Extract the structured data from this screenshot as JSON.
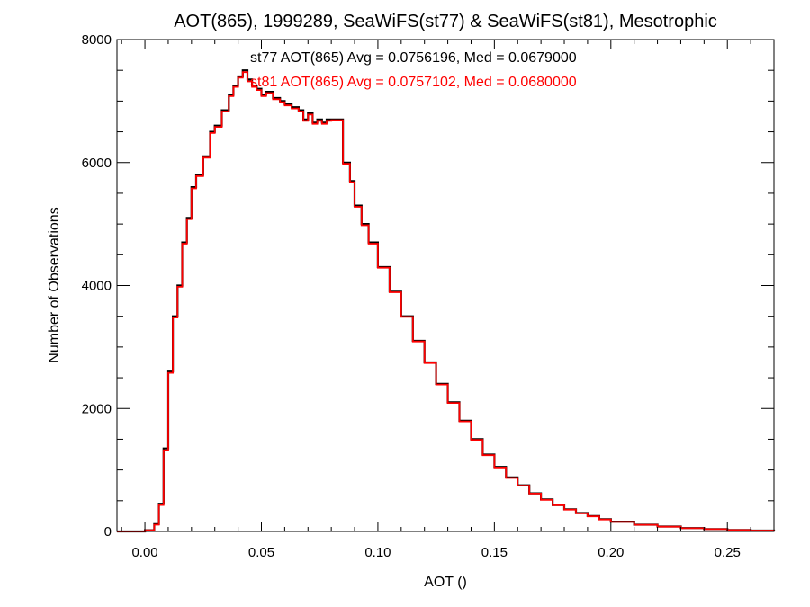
{
  "chart_data": {
    "type": "line",
    "step": true,
    "title": "AOT(865), 1999289, SeaWiFS(st77) & SeaWiFS(st81), Mesotrophic",
    "xlabel": "AOT ()",
    "ylabel": "Number of Observations",
    "xlim": [
      -0.012,
      0.27
    ],
    "ylim": [
      0,
      8000
    ],
    "xticks": [
      0.0,
      0.05,
      0.1,
      0.15,
      0.2,
      0.25
    ],
    "xtick_labels": [
      "0.00",
      "0.05",
      "0.10",
      "0.15",
      "0.20",
      "0.25"
    ],
    "yticks": [
      0,
      2000,
      4000,
      6000,
      8000
    ],
    "ytick_labels": [
      "0",
      "2000",
      "4000",
      "6000",
      "8000"
    ],
    "grid": false,
    "annotations": [
      {
        "text": "st77 AOT(865) Avg = 0.0756196, Med = 0.0679000",
        "color": "#000000"
      },
      {
        "text": "st81 AOT(865) Avg = 0.0757102, Med = 0.0680000",
        "color": "#ff0000"
      }
    ],
    "series": [
      {
        "color": "#000000",
        "x": [
          -0.012,
          -0.005,
          0.0,
          0.004,
          0.006,
          0.008,
          0.01,
          0.012,
          0.014,
          0.016,
          0.018,
          0.02,
          0.022,
          0.025,
          0.028,
          0.03,
          0.033,
          0.036,
          0.038,
          0.04,
          0.042,
          0.044,
          0.046,
          0.048,
          0.05,
          0.052,
          0.055,
          0.058,
          0.06,
          0.063,
          0.066,
          0.068,
          0.07,
          0.072,
          0.074,
          0.076,
          0.078,
          0.08,
          0.082,
          0.085,
          0.088,
          0.09,
          0.093,
          0.096,
          0.1,
          0.105,
          0.11,
          0.115,
          0.12,
          0.125,
          0.13,
          0.135,
          0.14,
          0.145,
          0.15,
          0.155,
          0.16,
          0.165,
          0.17,
          0.175,
          0.18,
          0.185,
          0.19,
          0.195,
          0.2,
          0.21,
          0.22,
          0.23,
          0.24,
          0.25,
          0.26,
          0.27
        ],
        "values": [
          0,
          0,
          20,
          120,
          450,
          1350,
          2600,
          3500,
          4000,
          4700,
          5100,
          5600,
          5800,
          6100,
          6500,
          6600,
          6850,
          7100,
          7250,
          7400,
          7500,
          7350,
          7250,
          7200,
          7100,
          7150,
          7050,
          7000,
          6950,
          6900,
          6850,
          6700,
          6800,
          6650,
          6700,
          6650,
          6700,
          6700,
          6700,
          6000,
          5700,
          5300,
          5000,
          4700,
          4300,
          3900,
          3500,
          3100,
          2750,
          2400,
          2100,
          1800,
          1500,
          1250,
          1050,
          880,
          750,
          620,
          520,
          430,
          360,
          300,
          250,
          200,
          160,
          110,
          80,
          55,
          40,
          25,
          15,
          10
        ]
      },
      {
        "color": "#ff0000",
        "x": [
          -0.012,
          -0.005,
          0.0,
          0.004,
          0.006,
          0.008,
          0.01,
          0.012,
          0.014,
          0.016,
          0.018,
          0.02,
          0.022,
          0.025,
          0.028,
          0.03,
          0.033,
          0.036,
          0.038,
          0.04,
          0.042,
          0.044,
          0.046,
          0.048,
          0.05,
          0.052,
          0.055,
          0.058,
          0.06,
          0.063,
          0.066,
          0.068,
          0.07,
          0.072,
          0.074,
          0.076,
          0.078,
          0.08,
          0.082,
          0.085,
          0.088,
          0.09,
          0.093,
          0.096,
          0.1,
          0.105,
          0.11,
          0.115,
          0.12,
          0.125,
          0.13,
          0.135,
          0.14,
          0.145,
          0.15,
          0.155,
          0.16,
          0.165,
          0.17,
          0.175,
          0.18,
          0.185,
          0.19,
          0.195,
          0.2,
          0.21,
          0.22,
          0.23,
          0.24,
          0.25,
          0.26,
          0.27
        ],
        "values": [
          0,
          0,
          20,
          110,
          430,
          1320,
          2580,
          3480,
          3980,
          4680,
          5080,
          5580,
          5780,
          6080,
          6480,
          6580,
          6830,
          7080,
          7230,
          7380,
          7470,
          7320,
          7230,
          7180,
          7080,
          7130,
          7030,
          6980,
          6930,
          6880,
          6830,
          6680,
          6780,
          6630,
          6680,
          6630,
          6680,
          6690,
          6690,
          5980,
          5680,
          5280,
          4980,
          4680,
          4290,
          3890,
          3490,
          3090,
          2740,
          2390,
          2090,
          1790,
          1490,
          1240,
          1040,
          870,
          745,
          615,
          515,
          425,
          355,
          295,
          245,
          195,
          155,
          108,
          78,
          53,
          38,
          24,
          14,
          9
        ]
      }
    ]
  }
}
